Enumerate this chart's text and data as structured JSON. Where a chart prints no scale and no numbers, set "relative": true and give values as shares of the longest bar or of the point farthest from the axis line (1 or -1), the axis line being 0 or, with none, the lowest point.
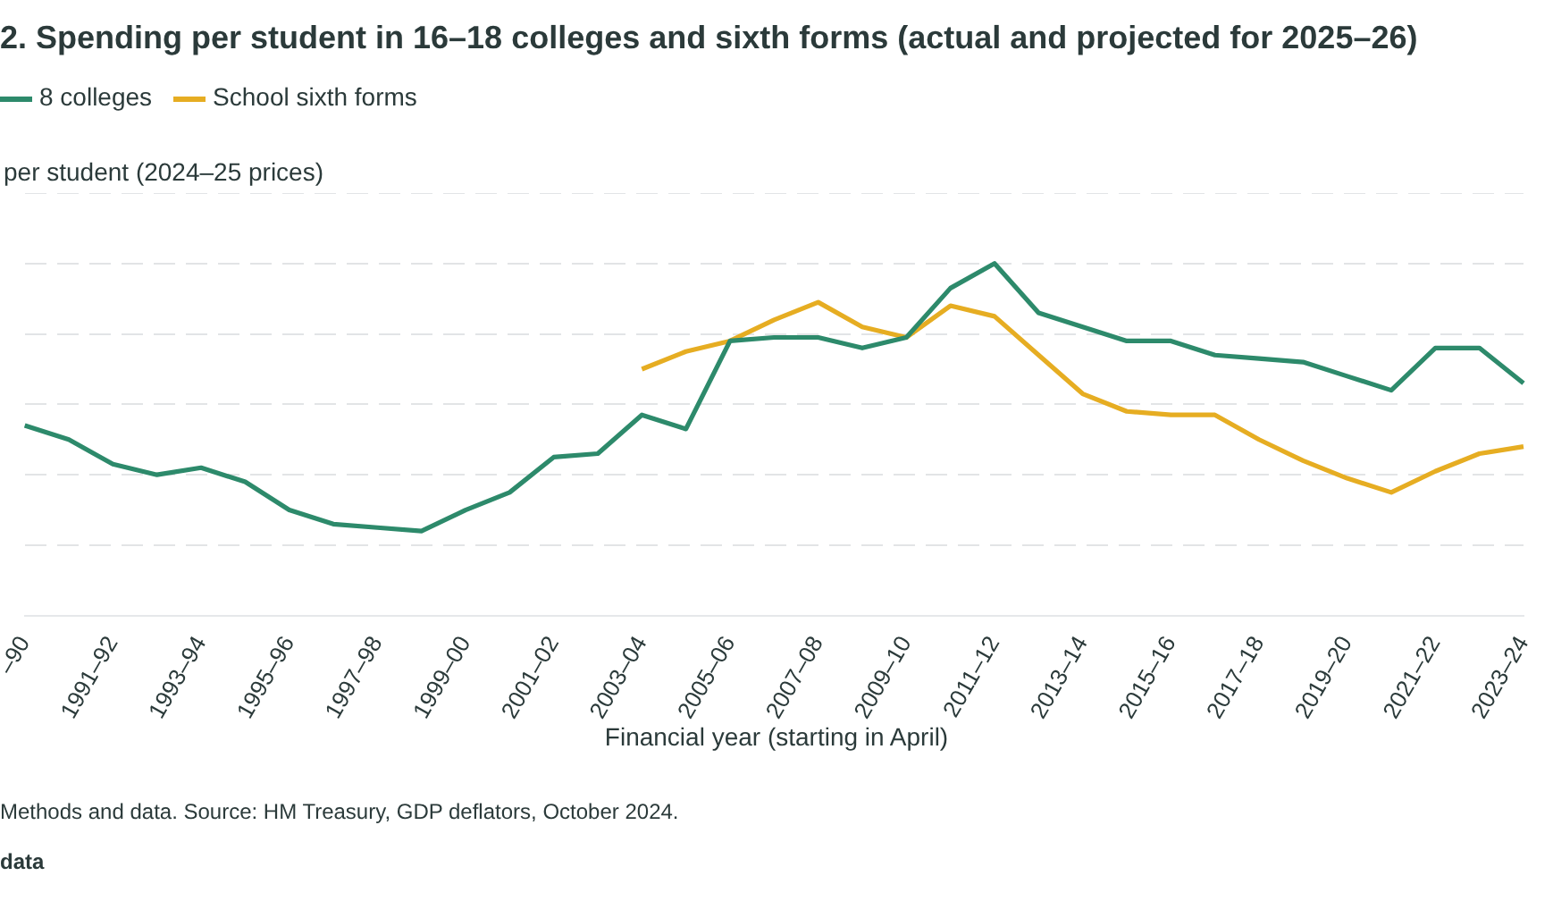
{
  "chart_data": {
    "type": "line",
    "title": "2. Spending per student in 16–18 colleges and sixth forms (actual and projected for 2025–26)",
    "ylabel": "per student (2024–25 prices)",
    "xlabel": "Financial year (starting in April)",
    "annotations": [
      "Methods and data. Source: HM Treasury, GDP deflators, October 2024.",
      "data"
    ],
    "categories": [
      "–90",
      null,
      "1991–92",
      null,
      "1993–94",
      null,
      "1995–96",
      null,
      "1997–98",
      null,
      "1999–00",
      null,
      "2001–02",
      null,
      "2003–04",
      null,
      "2005–06",
      null,
      "2007–08",
      null,
      "2009–10",
      null,
      "2011–12",
      null,
      "2013–14",
      null,
      "2015–16",
      null,
      "2017–18",
      null,
      "2019–20",
      null,
      "2021–22",
      null,
      "2023–24"
    ],
    "relative": true,
    "grid": "y",
    "legend": "top left",
    "marker": "none",
    "line_style": "solid",
    "series": [
      {
        "name": "8 colleges",
        "color": "#2d8a6b",
        "values": [
          0.54,
          0.5,
          0.43,
          0.4,
          0.42,
          0.38,
          0.3,
          0.26,
          0.25,
          0.24,
          0.3,
          0.35,
          0.45,
          0.46,
          0.57,
          0.53,
          0.78,
          0.79,
          0.79,
          0.76,
          0.79,
          0.93,
          1,
          0.86,
          0.82,
          0.78,
          0.78,
          0.74,
          0.73,
          0.72,
          0.68,
          0.64,
          0.76,
          0.76,
          0.66
        ]
      },
      {
        "name": "School sixth forms",
        "color": "#e6ad22",
        "values": [
          null,
          null,
          null,
          null,
          null,
          null,
          null,
          null,
          null,
          null,
          null,
          null,
          null,
          null,
          0.7,
          0.75,
          0.78,
          0.84,
          0.89,
          0.82,
          0.79,
          0.88,
          0.85,
          0.74,
          0.63,
          0.58,
          0.57,
          0.57,
          0.5,
          0.44,
          0.39,
          0.35,
          0.41,
          0.46,
          0.48
        ]
      }
    ]
  }
}
